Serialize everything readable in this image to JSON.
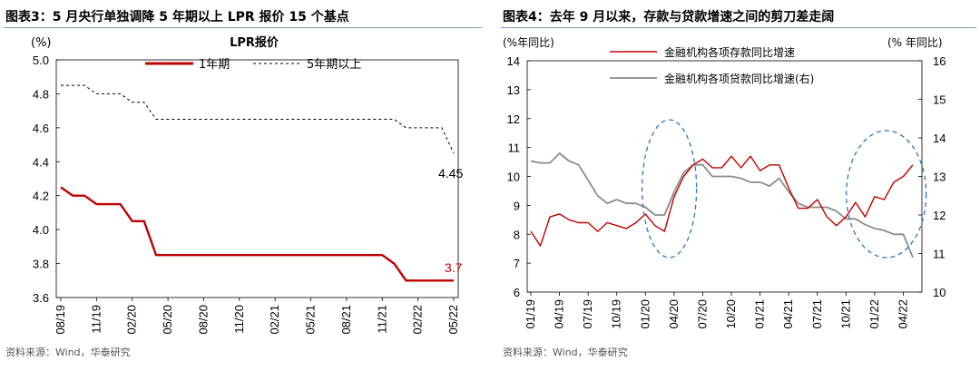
{
  "left": {
    "figure_title": "图表3：5 月央行单独调降 5 年期以上 LPR 报价 15 个基点",
    "source": "资料来源：Wind，华泰研究",
    "chart_data": {
      "type": "line",
      "title": "LPR报价",
      "ylabel": "(%)",
      "ylim": [
        3.6,
        5.0
      ],
      "yticks": [
        "5.0",
        "4.8",
        "4.6",
        "4.4",
        "4.2",
        "4.0",
        "3.8",
        "3.6"
      ],
      "xtick_labels": [
        "08/19",
        "11/19",
        "02/20",
        "05/20",
        "08/20",
        "11/20",
        "02/21",
        "05/21",
        "08/21",
        "11/21",
        "02/22",
        "05/22"
      ],
      "legend_position": "top",
      "series": [
        {
          "name": "1年期",
          "color": "#c00000",
          "style": "solid",
          "end_label": "3.7",
          "values": [
            4.25,
            4.2,
            4.2,
            4.15,
            4.15,
            4.15,
            4.05,
            4.05,
            3.85,
            3.85,
            3.85,
            3.85,
            3.85,
            3.85,
            3.85,
            3.85,
            3.85,
            3.85,
            3.85,
            3.85,
            3.85,
            3.85,
            3.85,
            3.85,
            3.85,
            3.85,
            3.85,
            3.85,
            3.8,
            3.7,
            3.7,
            3.7,
            3.7,
            3.7
          ]
        },
        {
          "name": "5年期以上",
          "color": "#000000",
          "style": "dashed",
          "end_label": "4.45",
          "values": [
            4.85,
            4.85,
            4.85,
            4.8,
            4.8,
            4.8,
            4.75,
            4.75,
            4.65,
            4.65,
            4.65,
            4.65,
            4.65,
            4.65,
            4.65,
            4.65,
            4.65,
            4.65,
            4.65,
            4.65,
            4.65,
            4.65,
            4.65,
            4.65,
            4.65,
            4.65,
            4.65,
            4.65,
            4.65,
            4.6,
            4.6,
            4.6,
            4.6,
            4.45
          ]
        }
      ]
    }
  },
  "right": {
    "figure_title": "图表4：去年 9 月以来，存款与贷款增速之间的剪刀差走阔",
    "source": "资料来源：Wind，华泰研究",
    "chart_data": {
      "type": "line",
      "ylabel_left": "(%年同比)",
      "ylabel_right": "(% 年同比)",
      "ylim_left": [
        6,
        14
      ],
      "ylim_right": [
        10,
        16
      ],
      "yticks_left": [
        "14",
        "13",
        "12",
        "11",
        "10",
        "9",
        "8",
        "7",
        "6"
      ],
      "yticks_right": [
        "16",
        "15",
        "14",
        "13",
        "12",
        "11",
        "10"
      ],
      "xtick_labels": [
        "01/19",
        "04/19",
        "07/19",
        "10/19",
        "01/20",
        "04/20",
        "07/20",
        "10/20",
        "01/21",
        "04/21",
        "07/21",
        "10/21",
        "01/22",
        "04/22"
      ],
      "legend_position": "top-center",
      "series": [
        {
          "name": "金融机构各项存款同比增速",
          "axis": "left",
          "color": "#c00000",
          "values": [
            8.1,
            7.6,
            8.6,
            8.7,
            8.5,
            8.4,
            8.4,
            8.1,
            8.4,
            8.3,
            8.2,
            8.4,
            8.7,
            8.3,
            8.1,
            9.3,
            10.0,
            10.4,
            10.6,
            10.3,
            10.3,
            10.7,
            10.3,
            10.7,
            10.2,
            10.4,
            10.4,
            9.6,
            8.9,
            8.9,
            9.2,
            8.6,
            8.3,
            8.6,
            9.1,
            8.6,
            9.3,
            9.2,
            9.8,
            10.0,
            10.4
          ]
        },
        {
          "name": "金融机构各项贷款同比增速(右)",
          "axis": "right",
          "color": "#8c8c8c",
          "values": [
            13.4,
            13.35,
            13.35,
            13.6,
            13.4,
            13.3,
            12.9,
            12.5,
            12.3,
            12.4,
            12.3,
            12.3,
            12.2,
            12.0,
            12.0,
            12.6,
            13.1,
            13.3,
            13.3,
            13.0,
            13.0,
            13.0,
            12.95,
            12.85,
            12.85,
            12.75,
            12.95,
            12.6,
            12.3,
            12.2,
            12.2,
            12.2,
            12.1,
            11.9,
            11.9,
            11.75,
            11.65,
            11.6,
            11.5,
            11.5,
            10.9
          ]
        }
      ],
      "annotations": [
        "dashed-ellipse-early-2020",
        "dashed-ellipse-2022"
      ]
    }
  }
}
